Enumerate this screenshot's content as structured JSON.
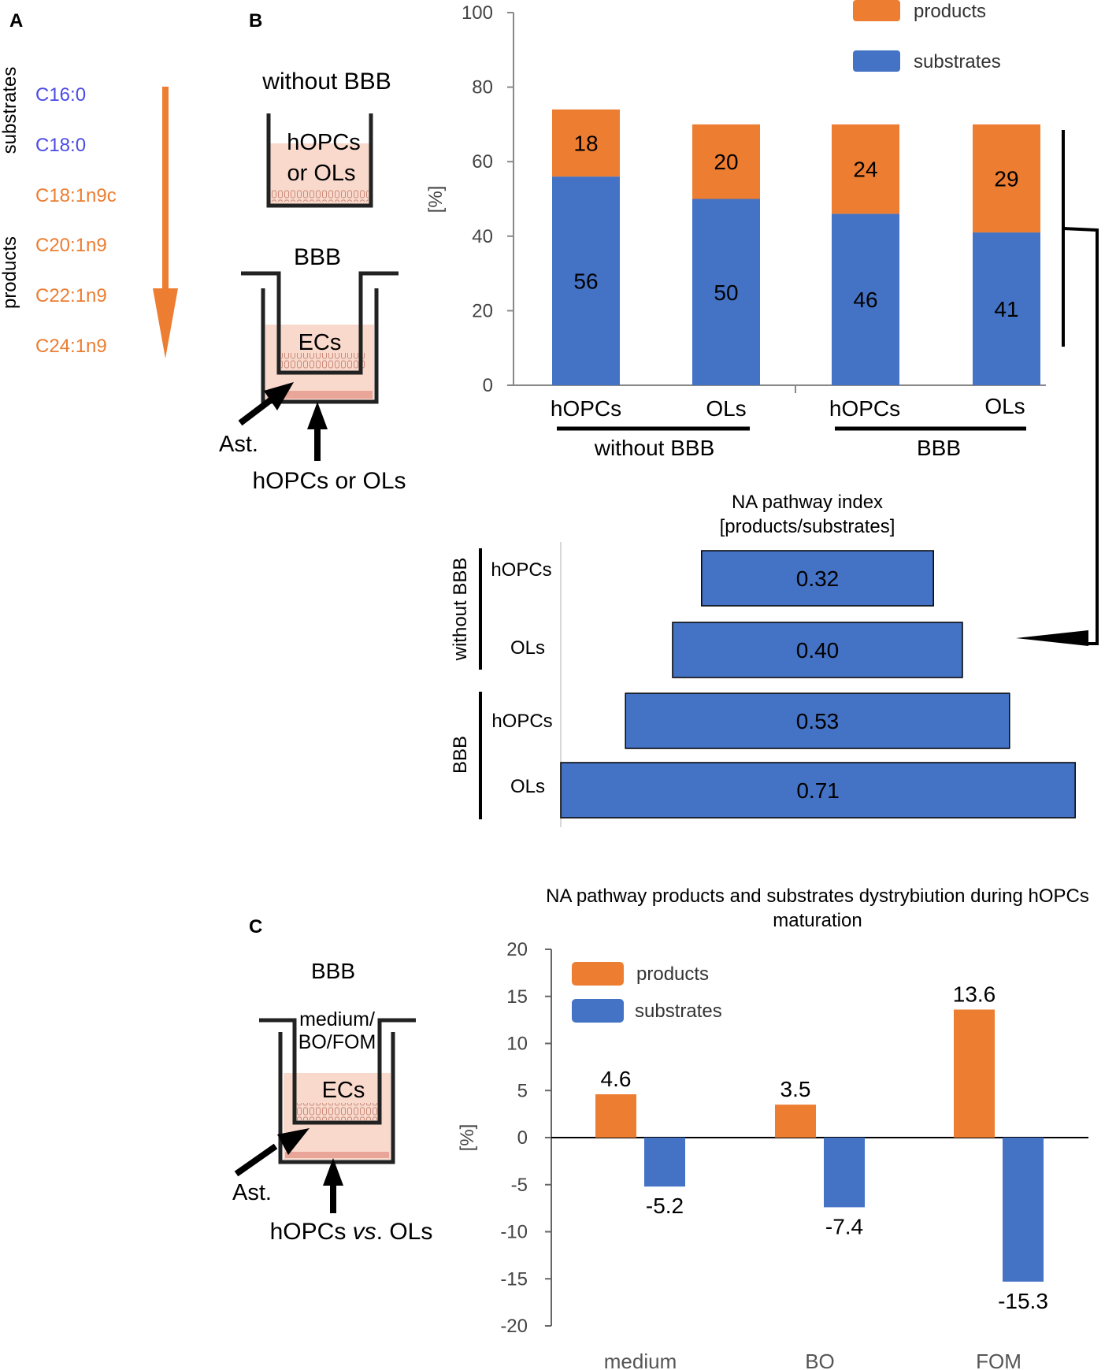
{
  "colors": {
    "products": "#ED7D31",
    "substrates": "#4472C4",
    "axis": "#888888",
    "well_fill": "#F8D9CC",
    "chain_substrate": "#4B4BE6",
    "chain_product": "#ED7D31"
  },
  "panel_labels": {
    "a": "A",
    "b": "B",
    "c": "C"
  },
  "panel_a": {
    "substrates_label": "substrates",
    "products_label": "products",
    "substrates": [
      "C16:0",
      "C18:0"
    ],
    "products": [
      "C18:1n9c",
      "C20:1n9",
      "C22:1n9",
      "C24:1n9"
    ]
  },
  "panel_b_diagram": {
    "without_bbb_title": "without BBB",
    "well_text_1": "hOPCs",
    "well_text_2": "or OLs",
    "bbb_title": "BBB",
    "insert_text": "ECs",
    "ast_label": "Ast.",
    "cells_label": "hOPCs or OLs"
  },
  "panel_c_diagram": {
    "bbb_title": "BBB",
    "treatment_line_1": "medium/",
    "treatment_line_2": "BO/FOM",
    "insert_text": "ECs",
    "ast_label": "Ast.",
    "cells_label_a": "hOPCs ",
    "cells_label_italic": "vs",
    "cells_label_b": ". OLs"
  },
  "chart_data": [
    {
      "id": "stacked",
      "type": "bar",
      "stacked": true,
      "title": "",
      "ylabel": "[%]",
      "ylim": [
        0,
        100
      ],
      "yticks": [
        0,
        20,
        40,
        60,
        80,
        100
      ],
      "categories": [
        "hOPCs",
        "OLs",
        "hOPCs",
        "OLs"
      ],
      "groups": [
        {
          "label": "without BBB",
          "members": [
            0,
            1
          ]
        },
        {
          "label": "BBB",
          "members": [
            2,
            3
          ]
        }
      ],
      "series": [
        {
          "name": "substrates",
          "values": [
            56,
            50,
            46,
            41
          ]
        },
        {
          "name": "products",
          "values": [
            18,
            20,
            24,
            29
          ]
        }
      ],
      "legend": [
        "products",
        "substrates"
      ],
      "legend_position": "top-right"
    },
    {
      "id": "index",
      "type": "bar",
      "orientation": "horizontal-centered",
      "title_line_1": "NA pathway index",
      "title_line_2": "[products/substrates]",
      "categories": [
        "hOPCs",
        "OLs",
        "hOPCs",
        "OLs"
      ],
      "groups": [
        {
          "label": "without BBB",
          "members": [
            0,
            1
          ]
        },
        {
          "label": "BBB",
          "members": [
            2,
            3
          ]
        }
      ],
      "values": [
        0.32,
        0.4,
        0.53,
        0.71
      ],
      "value_labels": [
        "0.32",
        "0.40",
        "0.53",
        "0.71"
      ]
    },
    {
      "id": "maturation",
      "type": "bar",
      "title_line_1": "NA pathway products and substrates dystrybiution during hOPCs",
      "title_line_2": "maturation",
      "ylabel": "[%]",
      "ylim": [
        -20,
        20
      ],
      "yticks": [
        20,
        15,
        10,
        5,
        0,
        -5,
        -10,
        -15,
        -20
      ],
      "categories": [
        "medium",
        "BO",
        "FOM"
      ],
      "series": [
        {
          "name": "products",
          "values": [
            4.6,
            3.5,
            13.6
          ]
        },
        {
          "name": "substrates",
          "values": [
            -5.2,
            -7.4,
            -15.3
          ]
        }
      ],
      "legend": [
        "products",
        "substrates"
      ],
      "legend_position": "top-left"
    }
  ]
}
